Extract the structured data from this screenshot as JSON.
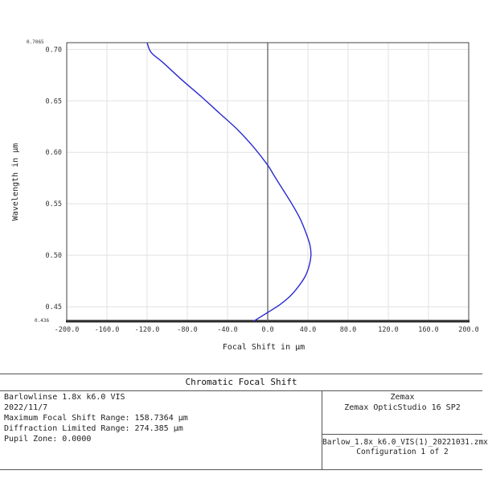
{
  "chart_data": {
    "type": "line",
    "title": "Chromatic Focal Shift",
    "xlabel": "Focal Shift in µm",
    "ylabel": "Wavelength in µm",
    "xlim": [
      -200,
      200
    ],
    "ylim": [
      0.436,
      0.7065
    ],
    "x_ticks": [
      "-200.0",
      "-160.0",
      "-120.0",
      "-80.0",
      "-40.0",
      "0.0",
      "40.0",
      "80.0",
      "120.0",
      "160.0",
      "200.0"
    ],
    "y_ticks": [
      "0.45",
      "0.50",
      "0.55",
      "0.60",
      "0.65",
      "0.70"
    ],
    "y_min_label": "0.436",
    "y_max_label": "0.7065",
    "grid": true,
    "series": [
      {
        "color": "#2a2ad0",
        "points": [
          [
            -14,
            0.436
          ],
          [
            0,
            0.4445
          ],
          [
            12,
            0.452
          ],
          [
            22,
            0.46
          ],
          [
            30,
            0.469
          ],
          [
            37,
            0.479
          ],
          [
            41,
            0.489
          ],
          [
            43,
            0.5
          ],
          [
            42,
            0.51
          ],
          [
            38,
            0.522
          ],
          [
            32,
            0.536
          ],
          [
            24,
            0.55
          ],
          [
            15,
            0.564
          ],
          [
            6,
            0.578
          ],
          [
            0,
            0.5875
          ],
          [
            -14,
            0.605
          ],
          [
            -30,
            0.622
          ],
          [
            -48,
            0.638
          ],
          [
            -66,
            0.654
          ],
          [
            -85,
            0.67
          ],
          [
            -104,
            0.687
          ],
          [
            -116,
            0.697
          ],
          [
            -120,
            0.7065
          ]
        ]
      }
    ]
  },
  "info": {
    "title": "Chromatic Focal Shift",
    "left_lines": [
      "Barlowlinse 1.8x k6.0 VIS",
      "2022/11/7",
      "Maximum Focal Shift Range: 158.7364 µm",
      "Diffraction Limited Range: 274.385 µm",
      "Pupil Zone: 0.0000"
    ],
    "vendor": "Zemax",
    "software": "Zemax OpticStudio 16 SP2",
    "filename": "Barlow_1.8x_k6.0_VIS(1)_20221031.zmx",
    "configuration": "Configuration 1 of 2"
  }
}
